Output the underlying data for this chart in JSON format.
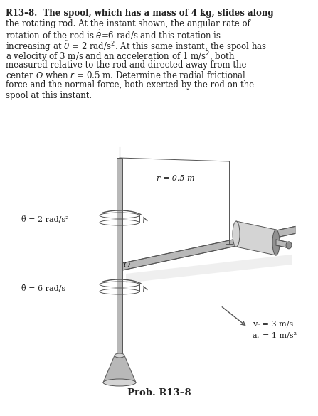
{
  "bg_color": "#ffffff",
  "text_color": "#222222",
  "gray_light": "#d4d4d4",
  "gray_mid": "#b8b8b8",
  "gray_dark": "#909090",
  "edge_color": "#555555",
  "font_size_body": 8.5,
  "font_size_label": 8.0,
  "font_size_prob": 9.5,
  "prob_label": "Prob. R13–8",
  "label_r": "r = 0.5 m",
  "label_theta_ddot": "θ̈ = 2 rad/s²",
  "label_theta_dot": "θ̇ = 6 rad/s",
  "label_vr": "vᵣ = 3 m/s",
  "label_ar": "aᵣ = 1 m/s²",
  "label_O": "O"
}
